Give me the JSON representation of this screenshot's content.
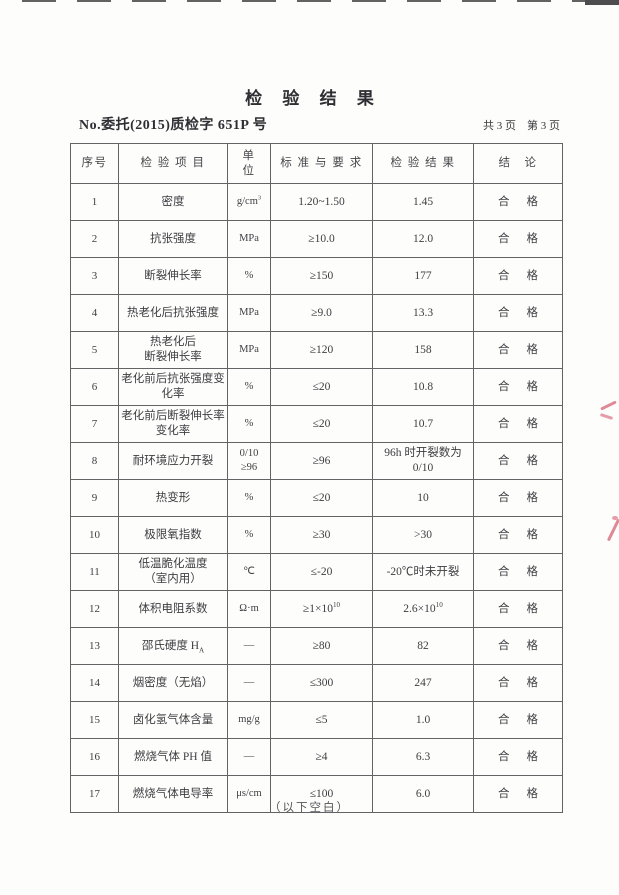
{
  "page": {
    "title": "检 验 结 果",
    "report_no": "No.委托(2015)质检字 651P 号",
    "page_info": "共 3 页　第 3 页",
    "footer_note": "（以下空白）"
  },
  "colors": {
    "red_pen_mark": "#d4596b",
    "table_border": "#636365",
    "text": "#3e3e42"
  },
  "table": {
    "headers": [
      "序号",
      "检 验 项 目",
      "单　位",
      "标 准 与 要 求",
      "检 验 结 果",
      "结　论"
    ],
    "rows": [
      {
        "no": "1",
        "item": "密度",
        "unit": [
          {
            "t": "g/cm"
          },
          {
            "t": "3",
            "sup": true
          }
        ],
        "standard": "1.20~1.50",
        "result": "1.45",
        "conclusion": "合格"
      },
      {
        "no": "2",
        "item": "抗张强度",
        "unit": "MPa",
        "standard": "≥10.0",
        "result": "12.0",
        "conclusion": "合格"
      },
      {
        "no": "3",
        "item": "断裂伸长率",
        "unit": "%",
        "standard": "≥150",
        "result": "177",
        "conclusion": "合格"
      },
      {
        "no": "4",
        "item": "热老化后抗张强度",
        "unit": "MPa",
        "standard": "≥9.0",
        "result": "13.3",
        "conclusion": "合格"
      },
      {
        "no": "5",
        "item": "热老化后\n断裂伸长率",
        "unit": "MPa",
        "standard": "≥120",
        "result": "158",
        "conclusion": "合格"
      },
      {
        "no": "6",
        "item": "老化前后抗张强度变\n化率",
        "unit": "%",
        "standard": "≤20",
        "result": "10.8",
        "conclusion": "合格"
      },
      {
        "no": "7",
        "item": "老化前后断裂伸长率\n变化率",
        "unit": "%",
        "standard": "≤20",
        "result": "10.7",
        "conclusion": "合格"
      },
      {
        "no": "8",
        "item": "耐环境应力开裂",
        "unit": "0/10\n≥96",
        "standard": "≥96",
        "result": "96h 时开裂数为 0/10",
        "conclusion": "合格"
      },
      {
        "no": "9",
        "item": "热变形",
        "unit": "%",
        "standard": "≤20",
        "result": "10",
        "conclusion": "合格"
      },
      {
        "no": "10",
        "item": "极限氧指数",
        "unit": "%",
        "standard": "≥30",
        "result": ">30",
        "conclusion": "合格"
      },
      {
        "no": "11",
        "item": "低温脆化温度\n（室内用）",
        "unit": "℃",
        "standard": "≤-20",
        "result": "-20℃时未开裂",
        "conclusion": "合格"
      },
      {
        "no": "12",
        "item": "体积电阻系数",
        "unit": "Ω·m",
        "standard": [
          {
            "t": "≥1×10"
          },
          {
            "t": "10",
            "sup": true
          }
        ],
        "result": [
          {
            "t": "2.6×10"
          },
          {
            "t": "10",
            "sup": true
          }
        ],
        "conclusion": "合格"
      },
      {
        "no": "13",
        "item": [
          {
            "t": "邵氏硬度 H"
          },
          {
            "t": "A",
            "sub": true
          }
        ],
        "unit": "—",
        "standard": "≥80",
        "result": "82",
        "conclusion": "合格"
      },
      {
        "no": "14",
        "item": "烟密度（无焰）",
        "unit": "—",
        "standard": "≤300",
        "result": "247",
        "conclusion": "合格"
      },
      {
        "no": "15",
        "item": "卤化氢气体含量",
        "unit": "mg/g",
        "standard": "≤5",
        "result": "1.0",
        "conclusion": "合格"
      },
      {
        "no": "16",
        "item": "燃烧气体 PH 值",
        "unit": "—",
        "standard": "≥4",
        "result": "6.3",
        "conclusion": "合格"
      },
      {
        "no": "17",
        "item": "燃烧气体电导率",
        "unit": "μs/cm",
        "standard": "≤100",
        "result": "6.0",
        "conclusion": "合格"
      }
    ]
  }
}
